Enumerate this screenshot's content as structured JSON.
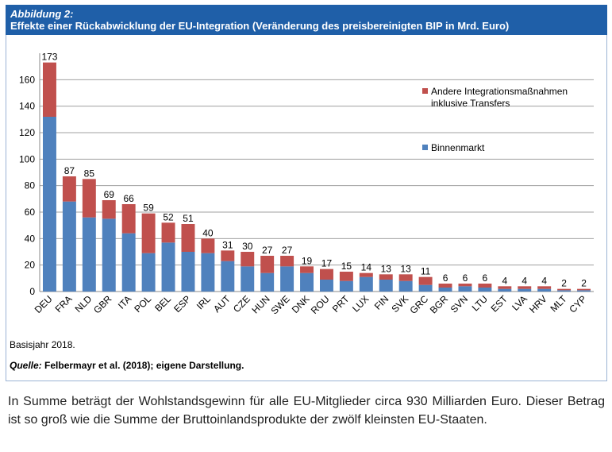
{
  "header": {
    "figure_label": "Abbildung 2:",
    "title": "Effekte einer Rückabwicklung der EU-Integration (Veränderung des preisbereinigten BIP in Mrd. Euro)"
  },
  "note": "Basisjahr 2018.",
  "source_label": "Quelle:",
  "source_text": " Felbermayr et al. (2018); eigene Darstellung.",
  "paragraph": "In Summe beträgt der Wohlstandsgewinn für alle EU-Mitglieder circa 930 Milliarden Euro. Dieser Betrag ist so groß wie die Summe der Bruttoinlandsprodukte der zwölf kleinsten EU-Staaten.",
  "colors": {
    "header_bg": "#1f5fa8",
    "binnenmarkt": "#4f81bd",
    "andere": "#c0504d"
  },
  "chart_data": {
    "type": "bar",
    "stacked": true,
    "categories": [
      "DEU",
      "FRA",
      "NLD",
      "GBR",
      "ITA",
      "POL",
      "BEL",
      "ESP",
      "IRL",
      "AUT",
      "CZE",
      "HUN",
      "SWE",
      "DNK",
      "ROU",
      "PRT",
      "LUX",
      "FIN",
      "SVK",
      "GRC",
      "BGR",
      "SVN",
      "LTU",
      "EST",
      "LVA",
      "HRV",
      "MLT",
      "CYP"
    ],
    "series": [
      {
        "name": "Binnenmarkt",
        "color": "#4f81bd",
        "values": [
          132,
          68,
          56,
          55,
          44,
          29,
          37,
          30,
          29,
          23,
          19,
          14,
          19,
          14,
          9,
          8,
          11,
          9,
          8,
          5,
          3,
          4,
          3,
          2,
          2,
          2,
          1,
          1
        ]
      },
      {
        "name": "Andere Integrationsmaßnahmen inklusive Transfers",
        "color": "#c0504d",
        "values": [
          41,
          19,
          29,
          14,
          22,
          30,
          15,
          21,
          11,
          8,
          11,
          13,
          8,
          5,
          8,
          7,
          3,
          4,
          5,
          6,
          3,
          2,
          3,
          2,
          2,
          2,
          1,
          1
        ]
      }
    ],
    "totals": [
      173,
      87,
      85,
      69,
      66,
      59,
      52,
      51,
      40,
      31,
      30,
      27,
      27,
      19,
      17,
      15,
      14,
      13,
      13,
      11,
      6,
      6,
      6,
      4,
      4,
      4,
      2,
      2
    ],
    "yticks": [
      0,
      20,
      40,
      60,
      80,
      100,
      120,
      140,
      160
    ],
    "ylim": [
      0,
      180
    ],
    "grid": true,
    "legend_position": "right",
    "legend": [
      {
        "label_line1": "Andere Integrationsmaßnahmen",
        "label_line2": "inklusive Transfers",
        "color": "#c0504d"
      },
      {
        "label_line1": "Binnenmarkt",
        "label_line2": "",
        "color": "#4f81bd"
      }
    ]
  }
}
